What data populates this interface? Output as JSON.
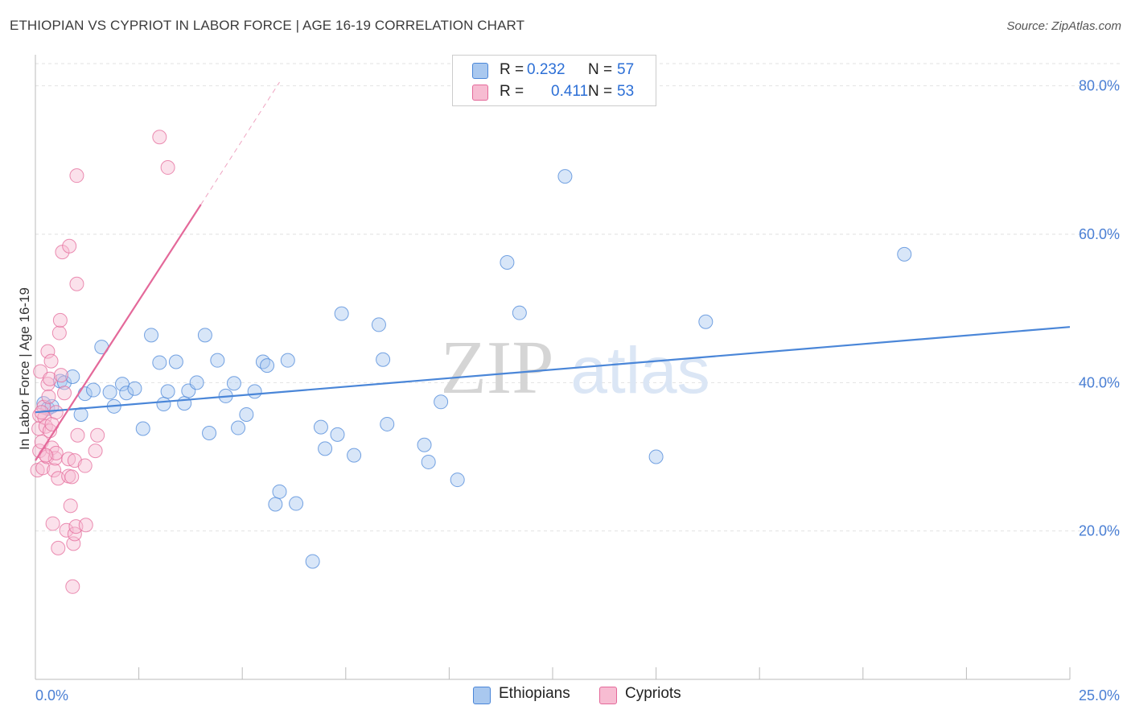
{
  "chart_data": {
    "type": "scatter",
    "title": "ETHIOPIAN VS CYPRIOT IN LABOR FORCE | AGE 16-19 CORRELATION CHART",
    "source": "Source: ZipAtlas.com",
    "xlabel": "",
    "ylabel": "In Labor Force | Age 16-19",
    "xlim": [
      0,
      25
    ],
    "ylim": [
      0,
      83
    ],
    "x_tick_labels": {
      "min": "0.0%",
      "max": "25.0%"
    },
    "y_ticks": [
      {
        "value": 20,
        "label": "20.0%"
      },
      {
        "value": 40,
        "label": "40.0%"
      },
      {
        "value": 60,
        "label": "60.0%"
      },
      {
        "value": 80,
        "label": "80.0%"
      }
    ],
    "watermark": {
      "zip": "ZIP",
      "atlas": "atlas"
    },
    "legend": [
      {
        "r_label": "R =",
        "r": "0.232",
        "n_label": "N =",
        "n": "57"
      },
      {
        "r_label": "R =",
        "r": "0.411",
        "n_label": "N =",
        "n": "53"
      }
    ],
    "series": [
      {
        "name": "Ethiopians",
        "color": "#4a86d8",
        "fill": "#a9c8ef",
        "trend": {
          "x0": 0,
          "y0": 36.0,
          "x1": 25,
          "y1": 47.5
        },
        "points": [
          [
            0.2,
            37.2
          ],
          [
            0.3,
            36.5
          ],
          [
            0.4,
            36.8
          ],
          [
            0.6,
            40.2
          ],
          [
            0.7,
            40.0
          ],
          [
            0.9,
            40.8
          ],
          [
            1.1,
            35.7
          ],
          [
            1.2,
            38.5
          ],
          [
            1.4,
            39.0
          ],
          [
            1.6,
            44.8
          ],
          [
            1.8,
            38.7
          ],
          [
            1.9,
            36.8
          ],
          [
            2.1,
            39.8
          ],
          [
            2.2,
            38.6
          ],
          [
            2.4,
            39.2
          ],
          [
            2.6,
            33.8
          ],
          [
            2.8,
            46.4
          ],
          [
            3.0,
            42.7
          ],
          [
            3.1,
            37.1
          ],
          [
            3.2,
            38.8
          ],
          [
            3.4,
            42.8
          ],
          [
            3.6,
            37.2
          ],
          [
            3.7,
            38.9
          ],
          [
            3.9,
            40.0
          ],
          [
            4.1,
            46.4
          ],
          [
            4.2,
            33.2
          ],
          [
            4.4,
            43.0
          ],
          [
            4.6,
            38.2
          ],
          [
            4.8,
            39.9
          ],
          [
            4.9,
            33.9
          ],
          [
            5.1,
            35.7
          ],
          [
            5.3,
            38.8
          ],
          [
            5.5,
            42.8
          ],
          [
            5.6,
            42.3
          ],
          [
            5.8,
            23.6
          ],
          [
            5.9,
            25.3
          ],
          [
            6.1,
            43.0
          ],
          [
            6.3,
            23.7
          ],
          [
            6.7,
            15.9
          ],
          [
            6.9,
            34.0
          ],
          [
            7.0,
            31.1
          ],
          [
            7.3,
            33.0
          ],
          [
            7.4,
            49.3
          ],
          [
            7.7,
            30.2
          ],
          [
            8.3,
            47.8
          ],
          [
            8.4,
            43.1
          ],
          [
            8.5,
            34.4
          ],
          [
            9.4,
            31.6
          ],
          [
            9.5,
            29.3
          ],
          [
            9.8,
            37.4
          ],
          [
            10.2,
            26.9
          ],
          [
            11.4,
            56.2
          ],
          [
            11.7,
            49.4
          ],
          [
            12.8,
            67.8
          ],
          [
            16.2,
            48.2
          ],
          [
            15.0,
            30.0
          ],
          [
            21.0,
            57.3
          ]
        ]
      },
      {
        "name": "Cypriots",
        "color": "#e4699a",
        "fill": "#f7bcd2",
        "trend": {
          "x0": 0,
          "y0": 29.5,
          "x1": 4.0,
          "y1": 64.0
        },
        "trend_ext": {
          "x0": 4.0,
          "y0": 64.0,
          "x1": 5.9,
          "y1": 80.5
        },
        "points": [
          [
            0.05,
            28.2
          ],
          [
            0.08,
            33.8
          ],
          [
            0.1,
            35.6
          ],
          [
            0.1,
            30.8
          ],
          [
            0.12,
            41.5
          ],
          [
            0.15,
            32.0
          ],
          [
            0.18,
            28.5
          ],
          [
            0.2,
            36.7
          ],
          [
            0.22,
            35.3
          ],
          [
            0.25,
            34.1
          ],
          [
            0.28,
            30.0
          ],
          [
            0.3,
            39.8
          ],
          [
            0.3,
            44.2
          ],
          [
            0.32,
            38.1
          ],
          [
            0.35,
            33.5
          ],
          [
            0.35,
            40.5
          ],
          [
            0.38,
            42.9
          ],
          [
            0.4,
            34.4
          ],
          [
            0.4,
            31.2
          ],
          [
            0.42,
            21.0
          ],
          [
            0.45,
            28.2
          ],
          [
            0.48,
            29.8
          ],
          [
            0.5,
            30.5
          ],
          [
            0.5,
            36.0
          ],
          [
            0.55,
            27.1
          ],
          [
            0.55,
            17.7
          ],
          [
            0.58,
            46.7
          ],
          [
            0.6,
            48.4
          ],
          [
            0.62,
            41.0
          ],
          [
            0.65,
            57.6
          ],
          [
            0.7,
            38.6
          ],
          [
            0.75,
            20.1
          ],
          [
            0.8,
            27.4
          ],
          [
            0.8,
            29.7
          ],
          [
            0.82,
            58.4
          ],
          [
            0.85,
            23.4
          ],
          [
            0.88,
            27.3
          ],
          [
            0.9,
            12.5
          ],
          [
            0.92,
            18.3
          ],
          [
            0.95,
            29.5
          ],
          [
            0.95,
            19.6
          ],
          [
            0.98,
            20.6
          ],
          [
            1.0,
            53.3
          ],
          [
            1.0,
            67.9
          ],
          [
            1.02,
            32.9
          ],
          [
            1.2,
            28.8
          ],
          [
            1.22,
            20.8
          ],
          [
            1.45,
            30.8
          ],
          [
            1.5,
            32.9
          ],
          [
            3.0,
            73.1
          ],
          [
            3.2,
            69.0
          ],
          [
            0.15,
            36.0
          ],
          [
            0.25,
            30.2
          ]
        ]
      }
    ]
  }
}
